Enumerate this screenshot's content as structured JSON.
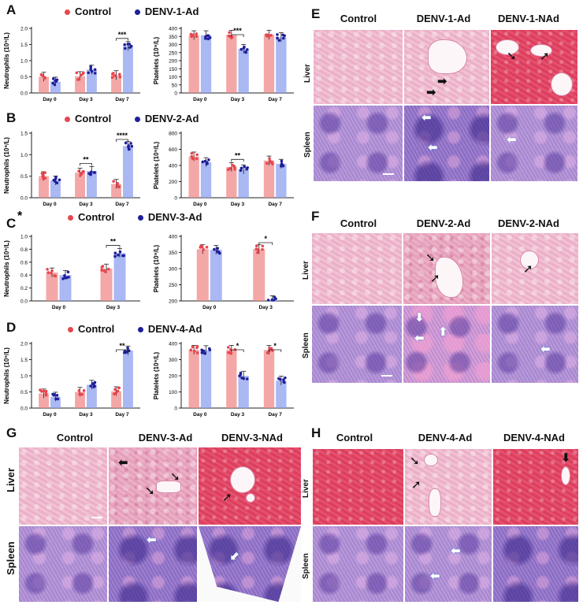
{
  "panels": {
    "A": {
      "label": "A",
      "legend": [
        "Control",
        "DENV-1-Ad"
      ]
    },
    "B": {
      "label": "B",
      "legend": [
        "Control",
        "DENV-2-Ad"
      ]
    },
    "C": {
      "label": "C",
      "star": "*",
      "legend": [
        "Control",
        "DENV-3-Ad"
      ]
    },
    "D": {
      "label": "D",
      "legend": [
        "Control",
        "DENV-4-Ad"
      ]
    },
    "E": {
      "label": "E",
      "cols": [
        "Control",
        "DENV-1-Ad",
        "DENV-1-NAd"
      ],
      "rows": [
        "Liver",
        "Spleen"
      ]
    },
    "F": {
      "label": "F",
      "cols": [
        "Control",
        "DENV-2-Ad",
        "DENV-2-NAd"
      ],
      "rows": [
        "Liver",
        "Spleen"
      ]
    },
    "G": {
      "label": "G",
      "cols": [
        "Control",
        "DENV-3-Ad",
        "DENV-3-NAd"
      ],
      "rows": [
        "Liver",
        "Spleen"
      ]
    },
    "H": {
      "label": "H",
      "cols": [
        "Control",
        "DENV-4-Ad",
        "DENV-4-NAd"
      ],
      "rows": [
        "Liver",
        "Spleen"
      ]
    }
  },
  "colors": {
    "control": "#f08a8a",
    "control_dot": "#e8464f",
    "treated": "#8ea0f0",
    "treated_dot": "#1f1f9a"
  },
  "chart_data": [
    {
      "id": "A-neutrophils",
      "type": "bar",
      "ylabel": "Neutrophils (10⁹/L)",
      "categories": [
        "Day 0",
        "Day 3",
        "Day 7"
      ],
      "ylim": [
        0,
        2.0
      ],
      "yticks": [
        "0.0",
        "0.5",
        "1.0",
        "1.5",
        "2.0"
      ],
      "series": [
        {
          "name": "Control",
          "values": [
            0.5,
            0.52,
            0.55
          ]
        },
        {
          "name": "DENV-1-Ad",
          "values": [
            0.35,
            0.72,
            1.45
          ]
        }
      ],
      "sig": [
        {
          "cat": 2,
          "label": "***"
        }
      ]
    },
    {
      "id": "A-platelets",
      "type": "bar",
      "ylabel": "Platelets (10⁹/L)",
      "categories": [
        "Day 0",
        "Day 3",
        "Day 7"
      ],
      "ylim": [
        0,
        400
      ],
      "yticks": [
        "0",
        "50",
        "100",
        "150",
        "200",
        "250",
        "300",
        "350",
        "400"
      ],
      "series": [
        {
          "name": "Control",
          "values": [
            357,
            360,
            360
          ]
        },
        {
          "name": "DENV-1-Ad",
          "values": [
            357,
            272,
            345
          ]
        }
      ],
      "sig": [
        {
          "cat": 1,
          "label": "***"
        }
      ]
    },
    {
      "id": "B-neutrophils",
      "type": "bar",
      "ylabel": "Neutrophils (10⁹/L)",
      "categories": [
        "Day 0",
        "Day 3",
        "Day 7"
      ],
      "ylim": [
        0,
        1.5
      ],
      "yticks": [
        "0.0",
        "0.5",
        "1.0",
        "1.5"
      ],
      "series": [
        {
          "name": "Control",
          "values": [
            0.5,
            0.58,
            0.32
          ]
        },
        {
          "name": "DENV-2-Ad",
          "values": [
            0.4,
            0.62,
            1.2
          ]
        }
      ],
      "sig": [
        {
          "cat": 1,
          "label": "**"
        },
        {
          "cat": 2,
          "label": "****"
        }
      ]
    },
    {
      "id": "B-platelets",
      "type": "bar",
      "ylabel": "Platelets (10⁹/L)",
      "categories": [
        "Day 0",
        "Day 3",
        "Day 7"
      ],
      "ylim": [
        0,
        800
      ],
      "yticks": [
        "0",
        "200",
        "400",
        "600",
        "800"
      ],
      "series": [
        {
          "name": "Control",
          "values": [
            510,
            380,
            460
          ]
        },
        {
          "name": "DENV-2-Ad",
          "values": [
            440,
            350,
            420
          ]
        }
      ],
      "sig": [
        {
          "cat": 1,
          "label": "**"
        }
      ]
    },
    {
      "id": "C-neutrophils",
      "type": "bar",
      "ylabel": "Neutrophils (10⁹/L)",
      "categories": [
        "Day 0",
        "Day 3"
      ],
      "ylim": [
        0,
        1.0
      ],
      "yticks": [
        "0.0",
        "0.2",
        "0.4",
        "0.6",
        "0.8",
        "1.0"
      ],
      "series": [
        {
          "name": "Control",
          "values": [
            0.44,
            0.5
          ]
        },
        {
          "name": "DENV-3-Ad",
          "values": [
            0.4,
            0.74
          ]
        }
      ],
      "sig": [
        {
          "cat": 1,
          "label": "**"
        }
      ]
    },
    {
      "id": "C-platelets",
      "type": "bar",
      "ylabel": "Platelets (10⁹/L)",
      "categories": [
        "Day 0",
        "Day 3"
      ],
      "ylim": [
        200,
        400
      ],
      "yticks": [
        "200",
        "250",
        "300",
        "350",
        "400"
      ],
      "series": [
        {
          "name": "Control",
          "values": [
            360,
            360
          ]
        },
        {
          "name": "DENV-3-Ad",
          "values": [
            358,
            202
          ]
        }
      ],
      "sig": [
        {
          "cat": 1,
          "label": "*"
        }
      ]
    },
    {
      "id": "D-neutrophils",
      "type": "bar",
      "ylabel": "Neutrophils (10⁹/L)",
      "categories": [
        "Day 0",
        "Day 3",
        "Day 7"
      ],
      "ylim": [
        0,
        2.0
      ],
      "yticks": [
        "0.0",
        "0.5",
        "1.0",
        "1.5",
        "2.0"
      ],
      "series": [
        {
          "name": "Control",
          "values": [
            0.45,
            0.5,
            0.52
          ]
        },
        {
          "name": "DENV-4-Ad",
          "values": [
            0.35,
            0.72,
            1.78
          ]
        }
      ],
      "sig": [
        {
          "cat": 2,
          "label": "**"
        }
      ]
    },
    {
      "id": "D-platelets",
      "type": "bar",
      "ylabel": "Platelets (10⁹/L)",
      "categories": [
        "Day 0",
        "Day 3",
        "Day 7"
      ],
      "ylim": [
        0,
        400
      ],
      "yticks": [
        "0",
        "100",
        "200",
        "300",
        "400"
      ],
      "series": [
        {
          "name": "Control",
          "values": [
            360,
            360,
            360
          ]
        },
        {
          "name": "DENV-4-Ad",
          "values": [
            358,
            200,
            170
          ]
        }
      ],
      "sig": [
        {
          "cat": 1,
          "label": "*"
        },
        {
          "cat": 2,
          "label": "*"
        }
      ]
    }
  ]
}
